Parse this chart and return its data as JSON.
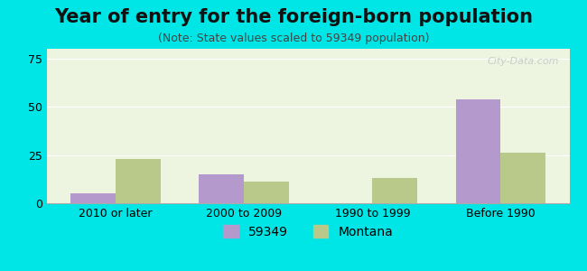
{
  "title": "Year of entry for the foreign-born population",
  "subtitle": "(Note: State values scaled to 59349 population)",
  "categories": [
    "2010 or later",
    "2000 to 2009",
    "1990 to 1999",
    "Before 1990"
  ],
  "values_59349": [
    5,
    15,
    0,
    54
  ],
  "values_montana": [
    23,
    11,
    13,
    26
  ],
  "color_59349": "#b399cc",
  "color_montana": "#b8c98a",
  "background_color": "#00e5e5",
  "plot_bg_gradient_top": "#f0f8e8",
  "plot_bg_gradient_bottom": "#ffffff",
  "ylim": [
    0,
    80
  ],
  "yticks": [
    0,
    25,
    50,
    75
  ],
  "legend_label_1": "59349",
  "legend_label_2": "Montana",
  "bar_width": 0.35,
  "title_fontsize": 15,
  "subtitle_fontsize": 9,
  "tick_fontsize": 9,
  "legend_fontsize": 10
}
